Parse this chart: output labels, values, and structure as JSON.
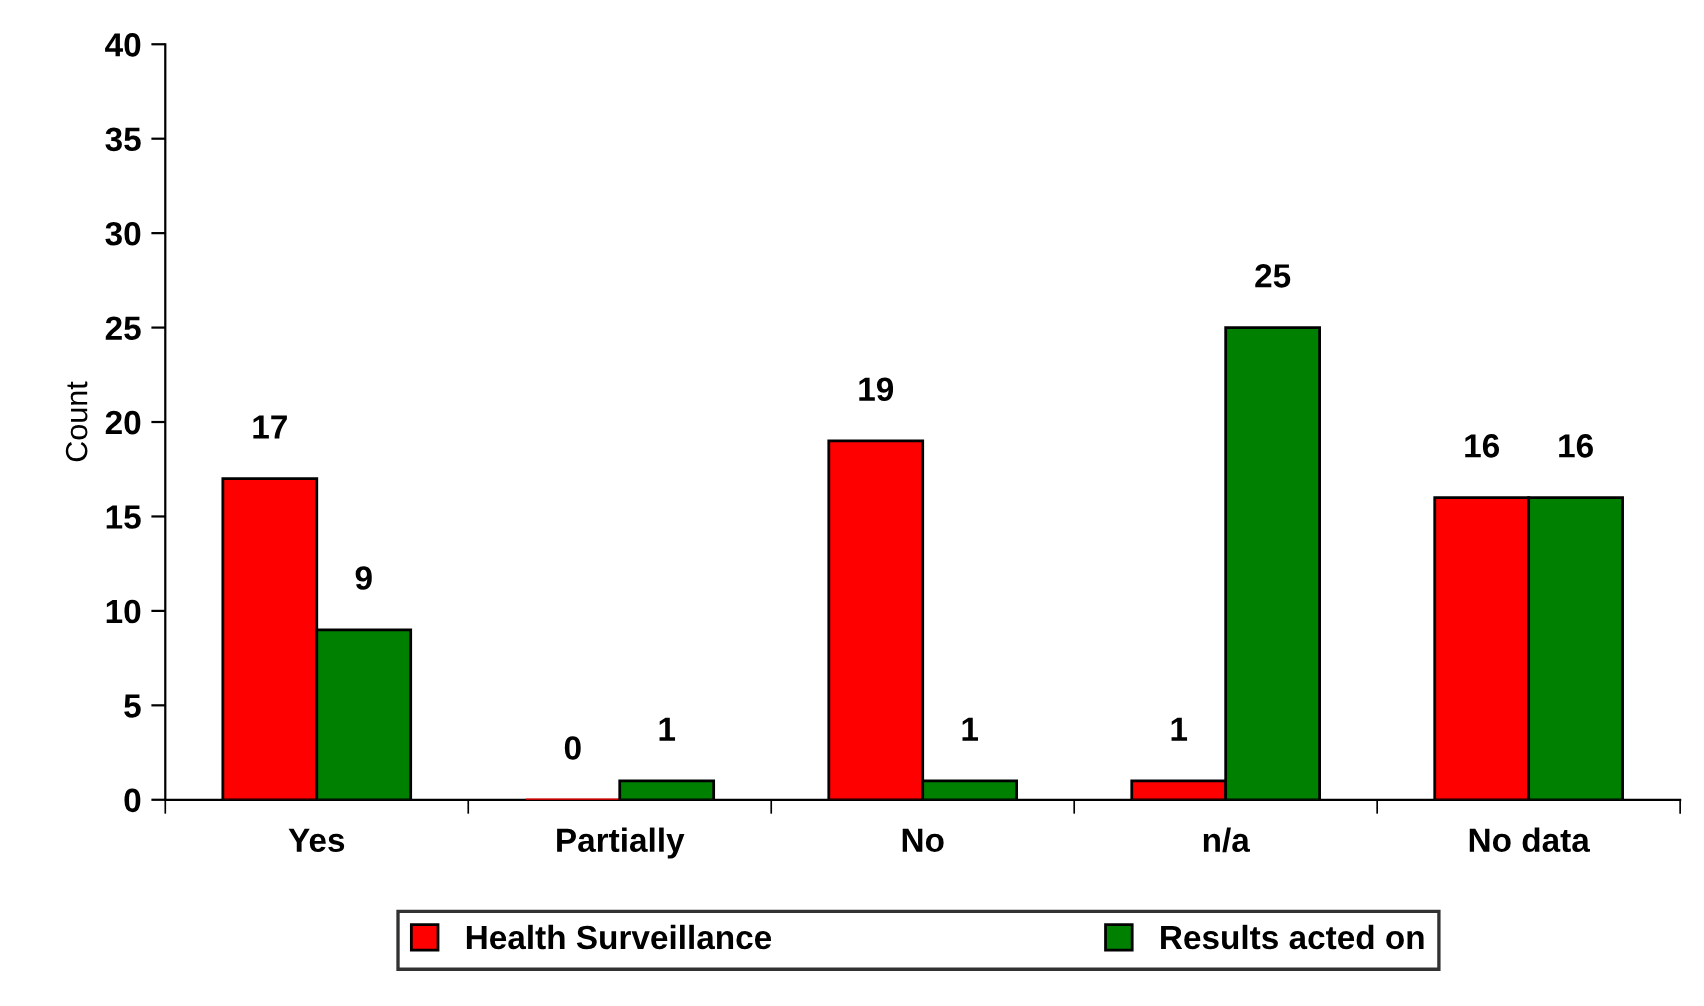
{
  "chart_data": {
    "type": "bar",
    "ylabel": "Count",
    "categories": [
      "Yes",
      "Partially",
      "No",
      "n/a",
      "No data"
    ],
    "series": [
      {
        "name": "Health Surveillance",
        "color": "#ff0000",
        "values": [
          17,
          0,
          19,
          1,
          16
        ]
      },
      {
        "name": "Results acted on",
        "color": "#008000",
        "values": [
          9,
          1,
          1,
          25,
          16
        ]
      }
    ],
    "ylim": [
      0,
      40
    ],
    "yticks": [
      0,
      5,
      10,
      15,
      20,
      25,
      30,
      35,
      40
    ],
    "data_labels": true,
    "grid": false,
    "legend": "bottom"
  }
}
